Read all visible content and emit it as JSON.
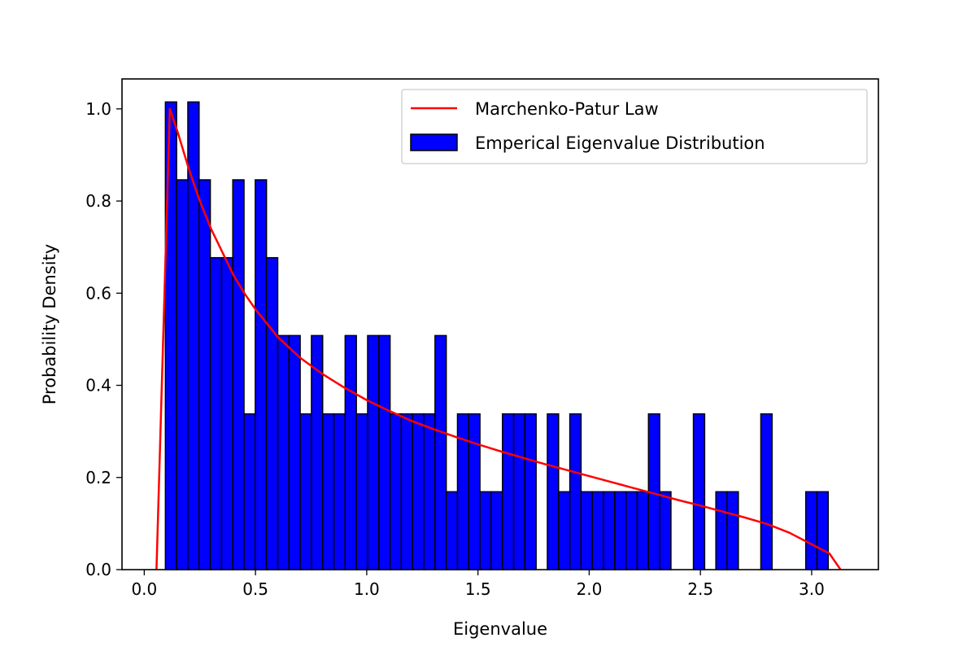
{
  "chart_data": {
    "type": "bar",
    "title": "",
    "xlabel": "Eigenvalue",
    "ylabel": "Probability Density",
    "xlim": [
      -0.1,
      3.3
    ],
    "ylim": [
      0,
      1.065
    ],
    "grid": false,
    "legend_position": "top-right",
    "x_ticks": [
      {
        "value": 0.0,
        "label": "0.0"
      },
      {
        "value": 0.5,
        "label": "0.5"
      },
      {
        "value": 1.0,
        "label": "1.0"
      },
      {
        "value": 1.5,
        "label": "1.5"
      },
      {
        "value": 2.0,
        "label": "2.0"
      },
      {
        "value": 2.5,
        "label": "2.5"
      },
      {
        "value": 3.0,
        "label": "3.0"
      }
    ],
    "y_ticks": [
      {
        "value": 0.0,
        "label": "0.0"
      },
      {
        "value": 0.2,
        "label": "0.2"
      },
      {
        "value": 0.4,
        "label": "0.4"
      },
      {
        "value": 0.6,
        "label": "0.6"
      },
      {
        "value": 0.8,
        "label": "0.8"
      },
      {
        "value": 1.0,
        "label": "1.0"
      }
    ],
    "histogram": {
      "name": "Emperical Eigenvalue Distribution",
      "color": "#0000ff",
      "edge_color": "#000000",
      "bin_start": 0.095,
      "bin_width": 0.0505,
      "values": [
        1.015,
        0.846,
        1.015,
        0.846,
        0.677,
        0.677,
        0.846,
        0.338,
        0.846,
        0.677,
        0.508,
        0.508,
        0.338,
        0.508,
        0.338,
        0.338,
        0.508,
        0.338,
        0.508,
        0.508,
        0.338,
        0.338,
        0.338,
        0.338,
        0.508,
        0.169,
        0.338,
        0.338,
        0.169,
        0.169,
        0.338,
        0.338,
        0.338,
        0.0,
        0.338,
        0.169,
        0.338,
        0.169,
        0.169,
        0.169,
        0.169,
        0.169,
        0.169,
        0.338,
        0.169,
        0.0,
        0.0,
        0.338,
        0.0,
        0.169,
        0.169,
        0.0,
        0.0,
        0.338,
        0.0,
        0.0,
        0.0,
        0.169,
        0.169
      ]
    },
    "line": {
      "name": "Marchenko-Patur Law",
      "color": "#ff0000",
      "x": [
        0.055,
        0.115,
        0.15,
        0.2,
        0.25,
        0.3,
        0.35,
        0.4,
        0.45,
        0.5,
        0.6,
        0.7,
        0.8,
        0.9,
        1.0,
        1.1,
        1.2,
        1.3,
        1.4,
        1.5,
        1.6,
        1.7,
        1.8,
        1.9,
        2.0,
        2.1,
        2.2,
        2.3,
        2.4,
        2.5,
        2.6,
        2.7,
        2.8,
        2.9,
        3.0,
        3.08,
        3.13
      ],
      "y": [
        0.0,
        1.0,
        0.95,
        0.87,
        0.8,
        0.74,
        0.69,
        0.64,
        0.6,
        0.565,
        0.505,
        0.46,
        0.425,
        0.395,
        0.368,
        0.345,
        0.323,
        0.305,
        0.288,
        0.272,
        0.257,
        0.243,
        0.229,
        0.216,
        0.203,
        0.19,
        0.177,
        0.164,
        0.151,
        0.139,
        0.126,
        0.113,
        0.099,
        0.08,
        0.055,
        0.035,
        0.0
      ]
    }
  }
}
